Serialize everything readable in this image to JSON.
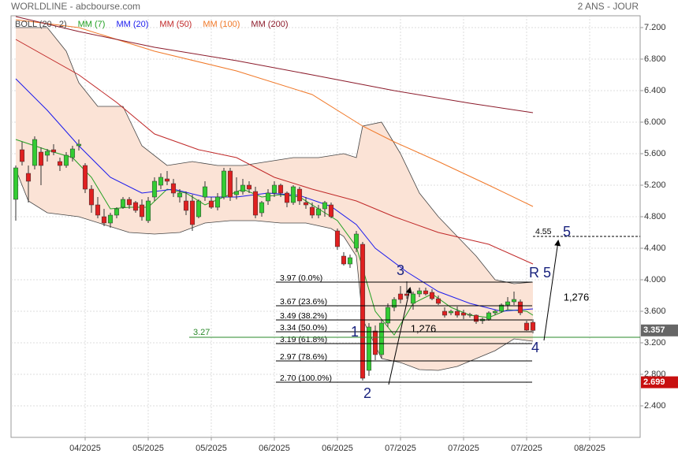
{
  "chart_data": {
    "type": "candlestick",
    "title": "WORLDLINE - abcbourse.com",
    "subtitle": "2 ANS - JOUR",
    "xlim": [
      -0.75,
      99
    ],
    "ylim": [
      2.0,
      7.35
    ],
    "grid": true,
    "yticks": [
      {
        "value": 2.4,
        "label": "2.400"
      },
      {
        "value": 2.8,
        "label": "2.800"
      },
      {
        "value": 3.2,
        "label": "3.200"
      },
      {
        "value": 3.6,
        "label": "3.600"
      },
      {
        "value": 4.0,
        "label": "4.000"
      },
      {
        "value": 4.4,
        "label": "4.400"
      },
      {
        "value": 4.8,
        "label": "4.800"
      },
      {
        "value": 5.2,
        "label": "5.200"
      },
      {
        "value": 5.6,
        "label": "5.600"
      },
      {
        "value": 6.0,
        "label": "6.000"
      },
      {
        "value": 6.4,
        "label": "6.400"
      },
      {
        "value": 6.8,
        "label": "6.800"
      },
      {
        "value": 7.2,
        "label": "7.200"
      }
    ],
    "xticks": [
      {
        "value": 11,
        "label": "04/2025"
      },
      {
        "value": 21,
        "label": "05/2025"
      },
      {
        "value": 31,
        "label": "05/2025"
      },
      {
        "value": 41,
        "label": "06/2025"
      },
      {
        "value": 51,
        "label": "06/2025"
      },
      {
        "value": 61,
        "label": "07/2025"
      },
      {
        "value": 71,
        "label": "07/2025"
      },
      {
        "value": 81,
        "label": "07/2025"
      },
      {
        "value": 91,
        "label": "08/2025"
      }
    ],
    "candles": {
      "up_color": "#33cc33",
      "down_color": "#e02020",
      "open": [
        5.02,
        5.65,
        5.35,
        5.45,
        5.62,
        5.58,
        5.65,
        5.5,
        5.45,
        5.55,
        5.7,
        5.45,
        5.15,
        4.95,
        4.8,
        4.72,
        4.82,
        4.92,
        5.02,
        4.98,
        4.95,
        4.75,
        5.05,
        5.2,
        5.28,
        5.22,
        5.05,
        5.0,
        5.0,
        4.8,
        5.05,
        5.0,
        4.92,
        5.05,
        5.38,
        5.08,
        5.12,
        5.2,
        5.12,
        4.85,
        5.0,
        5.1,
        5.2,
        5.1,
        4.98,
        5.15,
        4.98,
        4.92,
        4.82,
        4.9,
        4.95,
        4.62,
        4.3,
        4.2,
        4.4,
        4.45,
        2.85,
        3.35,
        3.05,
        3.45,
        3.65,
        3.82,
        3.82,
        3.7,
        3.82,
        3.86,
        3.84,
        3.76,
        3.6,
        3.58,
        3.6,
        3.58,
        3.55,
        3.55,
        3.48,
        3.5,
        3.58,
        3.6,
        3.68,
        3.72,
        3.72,
        3.45,
        3.46
      ],
      "high": [
        5.45,
        5.75,
        5.45,
        5.82,
        5.68,
        5.66,
        5.72,
        5.55,
        5.62,
        5.7,
        5.78,
        5.48,
        5.2,
        5.05,
        4.9,
        4.85,
        4.92,
        5.05,
        5.05,
        5.0,
        5.02,
        5.05,
        5.3,
        5.35,
        5.38,
        5.28,
        5.15,
        5.12,
        5.08,
        5.02,
        5.25,
        5.05,
        5.1,
        5.42,
        5.42,
        5.3,
        5.28,
        5.25,
        5.18,
        5.0,
        5.15,
        5.25,
        5.22,
        5.12,
        5.2,
        5.18,
        5.05,
        4.98,
        4.95,
        5.0,
        4.98,
        4.65,
        4.35,
        4.32,
        4.62,
        4.48,
        3.45,
        3.42,
        3.5,
        3.7,
        3.78,
        3.92,
        3.98,
        3.85,
        3.9,
        3.9,
        3.88,
        3.8,
        3.65,
        3.62,
        3.66,
        3.62,
        3.58,
        3.56,
        3.52,
        3.6,
        3.62,
        3.7,
        3.78,
        3.85,
        3.75,
        3.48,
        3.5
      ],
      "low": [
        4.75,
        5.45,
        4.98,
        5.4,
        5.2,
        5.5,
        5.58,
        5.38,
        5.42,
        5.5,
        5.64,
        5.1,
        4.85,
        4.78,
        4.68,
        4.66,
        4.78,
        4.9,
        4.9,
        4.85,
        4.75,
        4.72,
        5.0,
        5.15,
        5.2,
        5.05,
        4.98,
        4.82,
        4.62,
        4.78,
        5.0,
        4.9,
        4.88,
        5.02,
        5.0,
        5.02,
        5.08,
        5.1,
        4.78,
        4.8,
        4.95,
        5.05,
        5.05,
        4.92,
        4.95,
        4.95,
        4.9,
        4.78,
        4.78,
        4.8,
        4.78,
        4.38,
        4.18,
        4.15,
        4.35,
        2.72,
        2.78,
        2.98,
        3.0,
        3.4,
        3.6,
        3.7,
        3.76,
        3.62,
        3.78,
        3.8,
        3.74,
        3.68,
        3.52,
        3.55,
        3.52,
        3.5,
        3.52,
        3.44,
        3.44,
        3.48,
        3.55,
        3.58,
        3.62,
        3.68,
        3.55,
        3.35,
        3.32
      ],
      "close": [
        5.42,
        5.5,
        5.25,
        5.78,
        5.45,
        5.63,
        5.62,
        5.45,
        5.58,
        5.66,
        5.72,
        5.15,
        4.95,
        4.82,
        4.72,
        4.82,
        4.9,
        5.02,
        4.95,
        4.88,
        4.8,
        5.0,
        5.25,
        5.3,
        5.25,
        5.1,
        5.1,
        4.88,
        4.7,
        5.0,
        5.18,
        4.92,
        5.05,
        5.38,
        5.05,
        5.12,
        5.2,
        5.15,
        4.82,
        4.98,
        5.1,
        5.2,
        5.1,
        4.98,
        5.18,
        5.0,
        4.95,
        4.82,
        4.9,
        4.98,
        4.8,
        4.42,
        4.2,
        4.28,
        4.58,
        2.75,
        3.4,
        3.05,
        3.45,
        3.65,
        3.75,
        3.75,
        3.8,
        3.82,
        3.86,
        3.82,
        3.76,
        3.7,
        3.55,
        3.6,
        3.55,
        3.55,
        3.56,
        3.47,
        3.5,
        3.58,
        3.6,
        3.68,
        3.72,
        3.75,
        3.58,
        3.36,
        3.357
      ]
    },
    "bollinger": {
      "name": "BOLL (20 , 2)",
      "color": "#444444",
      "fill": "#fbe3d6",
      "upper": {
        "x": [
          0,
          5,
          8,
          10,
          13,
          17,
          20,
          24,
          28,
          32,
          36,
          40,
          44,
          48,
          52,
          54,
          55,
          58,
          61,
          64,
          67,
          70,
          73,
          76,
          79,
          82
        ],
        "values": [
          7.2,
          7.2,
          6.9,
          6.5,
          6.2,
          6.2,
          5.7,
          5.45,
          5.5,
          5.45,
          5.45,
          5.5,
          5.55,
          5.55,
          5.6,
          5.55,
          5.95,
          6.0,
          5.6,
          5.1,
          4.8,
          4.55,
          4.3,
          4.0,
          3.95,
          3.97
        ]
      },
      "lower": {
        "x": [
          0,
          2,
          5,
          10,
          14,
          18,
          22,
          26,
          30,
          34,
          38,
          42,
          46,
          50,
          52,
          54,
          55,
          58,
          61,
          64,
          67,
          70,
          73,
          76,
          79,
          82
        ],
        "values": [
          5.4,
          5.0,
          4.85,
          4.8,
          4.7,
          4.6,
          4.58,
          4.6,
          4.72,
          4.75,
          4.75,
          4.72,
          4.72,
          4.65,
          4.55,
          4.3,
          3.5,
          3.0,
          2.95,
          2.86,
          2.85,
          2.9,
          3.0,
          3.1,
          3.25,
          3.22
        ]
      }
    },
    "series": [
      {
        "name": "MM (7)",
        "color": "#22a022",
        "x": [
          0,
          3,
          6,
          9,
          12,
          15,
          18,
          21,
          24,
          27,
          30,
          33,
          36,
          39,
          42,
          45,
          48,
          51,
          54,
          57,
          60,
          63,
          66,
          69,
          72,
          75,
          78,
          81,
          82
        ],
        "values": [
          5.78,
          5.7,
          5.62,
          5.55,
          5.3,
          4.9,
          4.92,
          4.92,
          5.15,
          5.1,
          4.95,
          5.05,
          5.15,
          5.05,
          5.08,
          5.05,
          4.9,
          4.75,
          4.42,
          3.6,
          3.3,
          3.7,
          3.82,
          3.65,
          3.55,
          3.52,
          3.62,
          3.6,
          3.55
        ]
      },
      {
        "name": "MM (20)",
        "color": "#1a1aee",
        "x": [
          0,
          5,
          10,
          15,
          20,
          25,
          30,
          35,
          40,
          45,
          50,
          54,
          57,
          62,
          67,
          72,
          77,
          82
        ],
        "values": [
          6.55,
          6.15,
          5.7,
          5.3,
          5.1,
          5.15,
          5.05,
          5.05,
          5.1,
          5.07,
          4.93,
          4.7,
          4.4,
          4.1,
          3.85,
          3.7,
          3.6,
          3.63
        ]
      },
      {
        "name": "MM (50)",
        "color": "#c02828",
        "x": [
          0,
          10,
          16,
          22,
          29,
          35,
          41,
          47,
          54,
          60,
          67,
          75,
          82
        ],
        "values": [
          7.05,
          6.6,
          6.25,
          5.85,
          5.65,
          5.55,
          5.3,
          5.15,
          5.0,
          4.8,
          4.6,
          4.45,
          4.2
        ]
      },
      {
        "name": "MM (100)",
        "color": "#f07828",
        "x": [
          0,
          10,
          22,
          35,
          47,
          55,
          60,
          67,
          75,
          82
        ],
        "values": [
          7.3,
          7.2,
          6.9,
          6.65,
          6.35,
          5.95,
          5.75,
          5.5,
          5.2,
          4.93
        ]
      },
      {
        "name": "MM (200)",
        "color": "#8b1a2a",
        "x": [
          0,
          10,
          22,
          35,
          47,
          60,
          72,
          82
        ],
        "values": [
          7.34,
          7.15,
          6.95,
          6.78,
          6.6,
          6.4,
          6.24,
          6.12
        ]
      }
    ],
    "fib_levels": [
      {
        "value": 3.97,
        "label": "3.97  (0.0%)"
      },
      {
        "value": 3.67,
        "label": "3.67  (23.6%)"
      },
      {
        "value": 3.49,
        "label": "3.49  (38.2%)"
      },
      {
        "value": 3.34,
        "label": "3.34  (50.0%)"
      },
      {
        "value": 3.19,
        "label": "3.19  (61.8%)"
      },
      {
        "value": 2.97,
        "label": "2.97  (78.6%)"
      },
      {
        "value": 2.7,
        "label": "2.70  (100.0%)"
      }
    ],
    "support_line": {
      "value": 3.27,
      "label": "3.27",
      "color": "#2a8a2a"
    },
    "target_line": {
      "value": 4.55,
      "label": "4.55",
      "dashed": true
    },
    "wave_labels": [
      "1",
      "2",
      "3",
      "4",
      "5",
      "R 5"
    ],
    "ratio_labels": [
      "1,276",
      "1,276"
    ],
    "price_tags": [
      {
        "value": 3.357,
        "label": "3.357",
        "color": "#666666"
      },
      {
        "value": 2.699,
        "label": "2.699",
        "color": "#c81010"
      }
    ]
  }
}
